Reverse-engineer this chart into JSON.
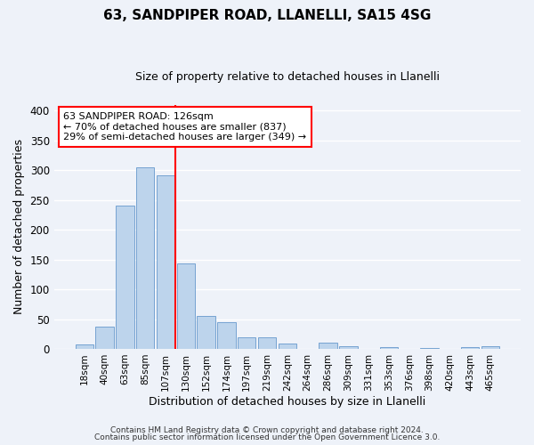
{
  "title": "63, SANDPIPER ROAD, LLANELLI, SA15 4SG",
  "subtitle": "Size of property relative to detached houses in Llanelli",
  "xlabel": "Distribution of detached houses by size in Llanelli",
  "ylabel": "Number of detached properties",
  "bar_labels": [
    "18sqm",
    "40sqm",
    "63sqm",
    "85sqm",
    "107sqm",
    "130sqm",
    "152sqm",
    "174sqm",
    "197sqm",
    "219sqm",
    "242sqm",
    "264sqm",
    "286sqm",
    "309sqm",
    "331sqm",
    "353sqm",
    "376sqm",
    "398sqm",
    "420sqm",
    "443sqm",
    "465sqm"
  ],
  "bar_values": [
    8,
    38,
    240,
    305,
    291,
    143,
    56,
    45,
    19,
    20,
    9,
    0,
    11,
    5,
    0,
    3,
    0,
    2,
    0,
    3,
    4
  ],
  "bar_color": "#bdd4ec",
  "bar_edge_color": "#6699cc",
  "vline_color": "red",
  "vline_index": 5,
  "ylim": [
    0,
    410
  ],
  "yticks": [
    0,
    50,
    100,
    150,
    200,
    250,
    300,
    350,
    400
  ],
  "annotation_title": "63 SANDPIPER ROAD: 126sqm",
  "annotation_line1": "← 70% of detached houses are smaller (837)",
  "annotation_line2": "29% of semi-detached houses are larger (349) →",
  "annotation_box_color": "white",
  "annotation_box_edge": "red",
  "footer1": "Contains HM Land Registry data © Crown copyright and database right 2024.",
  "footer2": "Contains public sector information licensed under the Open Government Licence 3.0.",
  "bg_color": "#eef2f9",
  "grid_color": "white",
  "title_fontsize": 11,
  "subtitle_fontsize": 9,
  "ylabel_fontsize": 9,
  "xlabel_fontsize": 9,
  "tick_fontsize": 7.5,
  "ann_fontsize": 8,
  "footer_fontsize": 6.5
}
